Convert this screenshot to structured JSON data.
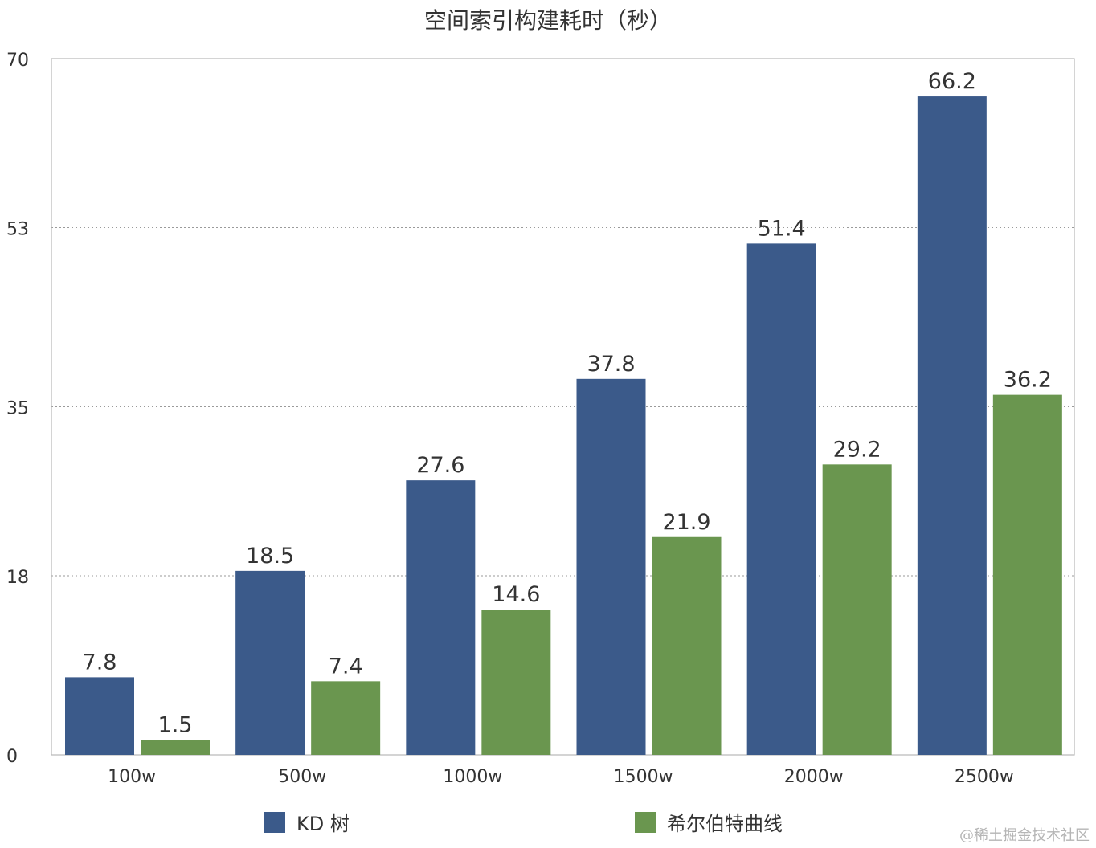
{
  "chart_data": {
    "type": "bar",
    "title": "空间索引构建耗时（秒）",
    "categories": [
      "100w",
      "500w",
      "1000w",
      "1500w",
      "2000w",
      "2500w"
    ],
    "series": [
      {
        "name": "KD 树",
        "color": "#3b5a8a",
        "values": [
          7.8,
          18.5,
          27.6,
          37.8,
          51.4,
          66.2
        ]
      },
      {
        "name": "希尔伯特曲线",
        "color": "#6a964f",
        "values": [
          1.5,
          7.4,
          14.6,
          21.9,
          29.2,
          36.2
        ]
      }
    ],
    "yticks": [
      "0",
      "18",
      "35",
      "53",
      "70"
    ],
    "ylim": [
      0,
      70
    ],
    "grid": "horizontal dotted",
    "legend": "bottom"
  },
  "watermark": "@稀土掘金技术社区"
}
